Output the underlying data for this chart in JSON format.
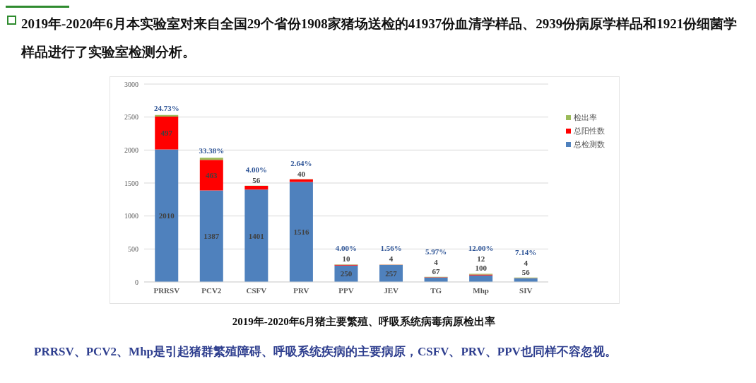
{
  "chart_data": {
    "type": "bar",
    "title": "2019年-2020年6月本实验室对来自全国29个省份1908家猪场送检的41937份血清学样品、2939份病原学样品和1921份细菌学样品进行了实验室检测分析。",
    "annotations": [
      "2019年-2020年6月猪主要繁殖、呼吸系统病毒病原检出率",
      "PRRSV、PCV2、Mhp是引起猪群繁殖障碍、呼吸系统疾病的主要病原，CSFV、PRV、PPV也同样不容忽视。"
    ],
    "categories": [
      "PRRSV",
      "PCV2",
      "CSFV",
      "PRV",
      "PPV",
      "JEV",
      "TG",
      "Mhp",
      "SIV"
    ],
    "stacked": true,
    "series": [
      {
        "name": "总检测数",
        "color": "#4f81bd",
        "values": [
          2010,
          1387,
          1401,
          1516,
          250,
          257,
          67,
          100,
          56
        ],
        "value_labels": [
          "2010",
          "1387",
          "1401",
          "1516",
          "250",
          "257",
          "67",
          "100",
          "56"
        ]
      },
      {
        "name": "总阳性数",
        "color": "#ff0000",
        "values": [
          497,
          463,
          56,
          40,
          10,
          4,
          4,
          12,
          4
        ],
        "value_labels": [
          "497",
          "463",
          "56",
          "40",
          "10",
          "4",
          "4",
          "12",
          "4"
        ]
      },
      {
        "name": "检出率",
        "color": "#9bbb59",
        "values": [
          24.73,
          33.38,
          4.0,
          2.64,
          4.0,
          1.56,
          5.97,
          12.0,
          7.14
        ],
        "value_labels": [
          "24.73%",
          "33.38%",
          "4.00%",
          "2.64%",
          "4.00%",
          "1.56%",
          "5.97%",
          "12.00%",
          "7.14%"
        ]
      }
    ],
    "ylim": [
      0,
      3000
    ],
    "yticks": [
      0,
      500,
      1000,
      1500,
      2000,
      2500,
      3000
    ],
    "grid": "y",
    "legend": "top right"
  }
}
